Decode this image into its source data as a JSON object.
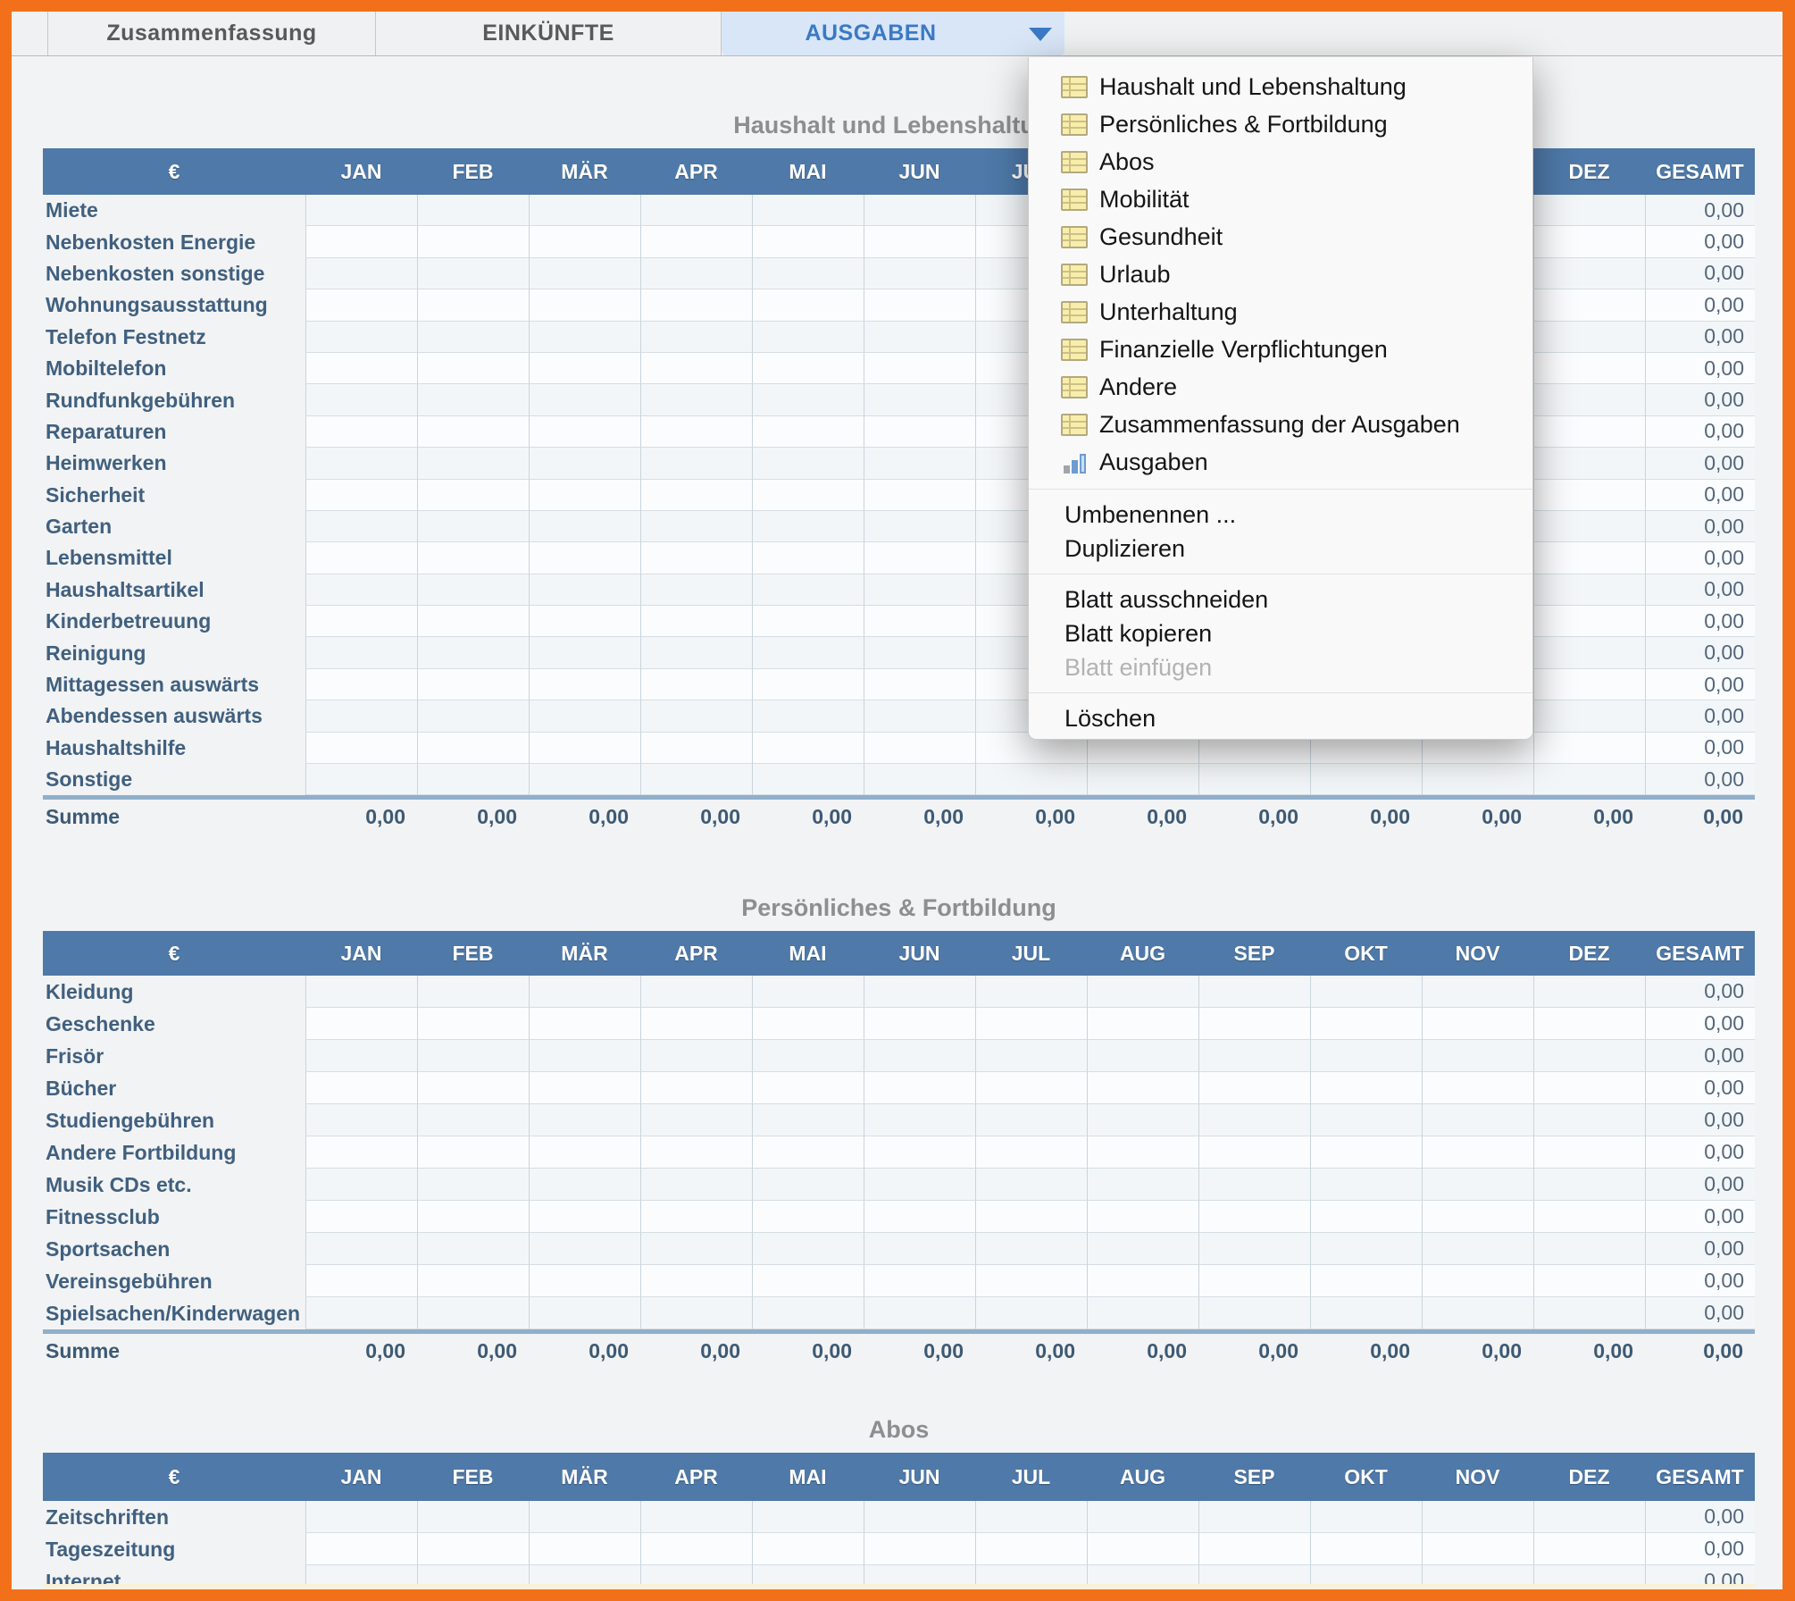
{
  "tabs": {
    "items": [
      {
        "label": "Zusammenfassung",
        "selected": false
      },
      {
        "label": "EINKÜNFTE",
        "selected": false
      },
      {
        "label": "AUSGABEN",
        "selected": true
      }
    ]
  },
  "columns": {
    "currency_symbol": "€",
    "months": [
      "JAN",
      "FEB",
      "MÄR",
      "APR",
      "MAI",
      "JUN",
      "JUL",
      "AUG",
      "SEP",
      "OKT",
      "NOV",
      "DEZ"
    ],
    "gesamt": "GESAMT"
  },
  "tables": [
    {
      "title": "Haushalt und Lebenshaltung",
      "rows": [
        "Miete",
        "Nebenkosten Energie",
        "Nebenkosten sonstige",
        "Wohnungsausstattung",
        "Telefon Festnetz",
        "Mobiltelefon",
        "Rundfunkgebühren",
        "Reparaturen",
        "Heimwerken",
        "Sicherheit",
        "Garten",
        "Lebensmittel",
        "Haushaltsartikel",
        "Kinderbetreuung",
        "Reinigung",
        "Mittagessen auswärts",
        "Abendessen auswärts",
        "Haushaltshilfe",
        "Sonstige"
      ],
      "row_gesamt_value": "0,00",
      "summe_label": "Summe",
      "summe_values": [
        "0,00",
        "0,00",
        "0,00",
        "0,00",
        "0,00",
        "0,00",
        "0,00",
        "0,00",
        "0,00",
        "0,00",
        "0,00",
        "0,00",
        "0,00"
      ]
    },
    {
      "title": "Persönliches & Fortbildung",
      "rows": [
        "Kleidung",
        "Geschenke",
        "Frisör",
        "Bücher",
        "Studiengebühren",
        "Andere Fortbildung",
        "Musik CDs etc.",
        "Fitnessclub",
        "Sportsachen",
        "Vereinsgebühren",
        "Spielsachen/Kinderwagen"
      ],
      "row_gesamt_value": "0,00",
      "summe_label": "Summe",
      "summe_values": [
        "0,00",
        "0,00",
        "0,00",
        "0,00",
        "0,00",
        "0,00",
        "0,00",
        "0,00",
        "0,00",
        "0,00",
        "0,00",
        "0,00",
        "0,00"
      ]
    },
    {
      "title": "Abos",
      "rows": [
        "Zeitschriften",
        "Tageszeitung",
        "Internet"
      ],
      "row_gesamt_value": "0,00"
    }
  ],
  "menu": {
    "sheets": [
      {
        "label": "Haushalt und Lebenshaltung",
        "icon": "table-icon"
      },
      {
        "label": "Persönliches & Fortbildung",
        "icon": "table-icon"
      },
      {
        "label": "Abos",
        "icon": "table-icon"
      },
      {
        "label": "Mobilität",
        "icon": "table-icon"
      },
      {
        "label": "Gesundheit",
        "icon": "table-icon"
      },
      {
        "label": "Urlaub",
        "icon": "table-icon"
      },
      {
        "label": "Unterhaltung",
        "icon": "table-icon"
      },
      {
        "label": "Finanzielle Verpflichtungen",
        "icon": "table-icon"
      },
      {
        "label": "Andere",
        "icon": "table-icon"
      },
      {
        "label": "Zusammenfassung der Ausgaben",
        "icon": "table-icon"
      },
      {
        "label": "Ausgaben",
        "icon": "chart-icon"
      }
    ],
    "groups": [
      [
        {
          "label": "Umbenennen ...",
          "disabled": false
        },
        {
          "label": "Duplizieren",
          "disabled": false
        }
      ],
      [
        {
          "label": "Blatt ausschneiden",
          "disabled": false
        },
        {
          "label": "Blatt kopieren",
          "disabled": false
        },
        {
          "label": "Blatt einfügen",
          "disabled": true
        }
      ],
      [
        {
          "label": "Löschen",
          "disabled": false
        }
      ]
    ]
  },
  "colors": {
    "accent_orange": "#f3701a",
    "header_blue": "#4e79a8",
    "tab_selected_bg": "#d8e6f7",
    "tab_selected_text": "#3b79c5"
  }
}
